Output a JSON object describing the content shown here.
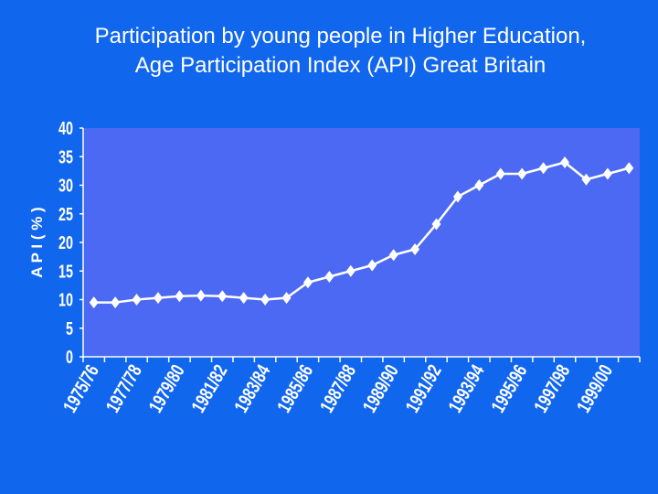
{
  "colors": {
    "background": "#1166ee",
    "plot_area": "#4b69f2",
    "series": "#ffffff"
  },
  "chart_data": {
    "type": "line",
    "title_lines": [
      "Participation by young people in Higher Education,",
      "Age Participation Index (API) Great Britain"
    ],
    "xlabel": "",
    "ylabel": "A P I ( % )",
    "ylim": [
      0,
      40
    ],
    "yticks": [
      0,
      5,
      10,
      15,
      20,
      25,
      30,
      35,
      40
    ],
    "grid": false,
    "legend": "none",
    "tick_labels": [
      "1975/76",
      "1977/78",
      "1979/80",
      "1981/82",
      "1983/84",
      "1985/86",
      "1987/88",
      "1989/90",
      "1991/92",
      "1993/94",
      "1995/96",
      "1997/98",
      "1999/00"
    ],
    "x": [
      "1975/76",
      "1976/77",
      "1977/78",
      "1978/79",
      "1979/80",
      "1980/81",
      "1981/82",
      "1982/83",
      "1983/84",
      "1984/85",
      "1985/86",
      "1986/87",
      "1987/88",
      "1988/89",
      "1989/90",
      "1990/91",
      "1991/92",
      "1992/93",
      "1993/94",
      "1994/95",
      "1995/96",
      "1996/97",
      "1997/98",
      "1998/99",
      "1999/00",
      "2000/01"
    ],
    "series": [
      {
        "values": [
          9.5,
          9.5,
          10.0,
          10.3,
          10.6,
          10.7,
          10.6,
          10.3,
          10.0,
          10.3,
          13.0,
          14.0,
          15.0,
          16.0,
          17.8,
          18.8,
          23.2,
          28.0,
          30.0,
          32.0,
          32.0,
          33.0,
          34.0,
          31.0,
          32.0,
          33.0
        ]
      }
    ]
  }
}
